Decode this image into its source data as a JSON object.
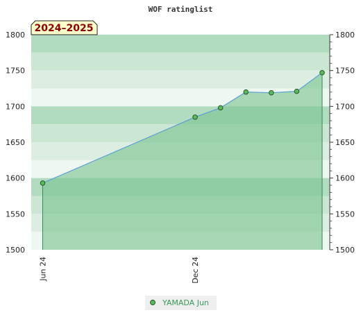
{
  "title": "WOF ratinglist",
  "season_badge": "2024–2025",
  "legend": {
    "series_name": "YAMADA Jun"
  },
  "colors": {
    "line": "#5a9fd4",
    "fill": "#7cc48f",
    "marker_fill": "#5cb85c",
    "marker_stroke": "#1f4d1f",
    "drop_line": "#2e8b57",
    "badge_bg": "#ffffcc",
    "badge_text": "#8b0000"
  },
  "chart_data": {
    "type": "area",
    "title": "WOF ratinglist",
    "xlabel": "",
    "ylabel": "",
    "x_tick_labels": [
      {
        "label": "Jun 24",
        "x": 0
      },
      {
        "label": "Dec 24",
        "x": 6
      }
    ],
    "xlim": [
      -0.45,
      11.3
    ],
    "ylim": [
      1500,
      1800
    ],
    "y_ticks": [
      1500,
      1550,
      1600,
      1650,
      1700,
      1750,
      1800
    ],
    "y_tick_labels": [
      "1500",
      "1550",
      "1600",
      "1650",
      "1700",
      "1750",
      "1800"
    ],
    "grid": "horizontal alternating bands",
    "legend_position": "bottom-center",
    "series": [
      {
        "name": "YAMADA Jun",
        "x": [
          0,
          6,
          7,
          8,
          9,
          10,
          11
        ],
        "values": [
          1593,
          1685,
          1698,
          1720,
          1719,
          1721,
          1747
        ]
      }
    ]
  }
}
